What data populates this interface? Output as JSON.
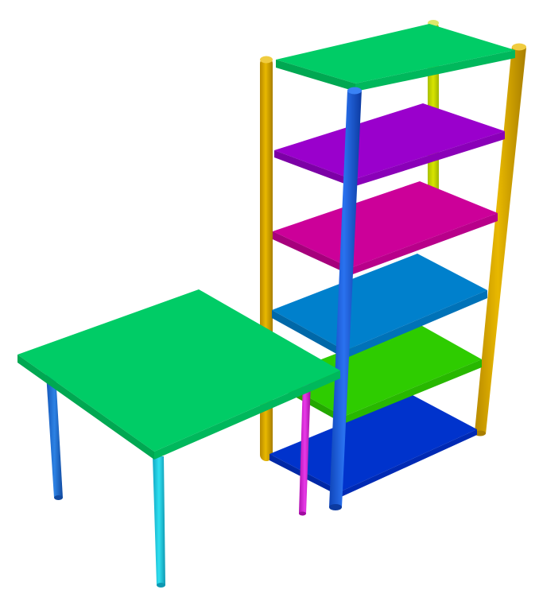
{
  "scene": {
    "background": "#ffffff",
    "objects": [
      "table",
      "shelving-unit"
    ]
  },
  "table": {
    "shelf_count": 0,
    "leg_count": 4,
    "top_color": "#00cc66",
    "leg_colors": [
      "#1a6fd0",
      "#18c8dc",
      "#d21ed2",
      "#1a6fd0"
    ]
  },
  "shelving_unit": {
    "shelf_count": 6,
    "post_count": 4,
    "shelf_colors_top_to_bottom": [
      "#00cc66",
      "#9a00cc",
      "#cc0099",
      "#0080cc",
      "#2ecc00",
      "#0033cc"
    ],
    "post_colors": [
      "#d4a800",
      "#d4a800",
      "#c8d400",
      "#1a5fd6"
    ]
  }
}
